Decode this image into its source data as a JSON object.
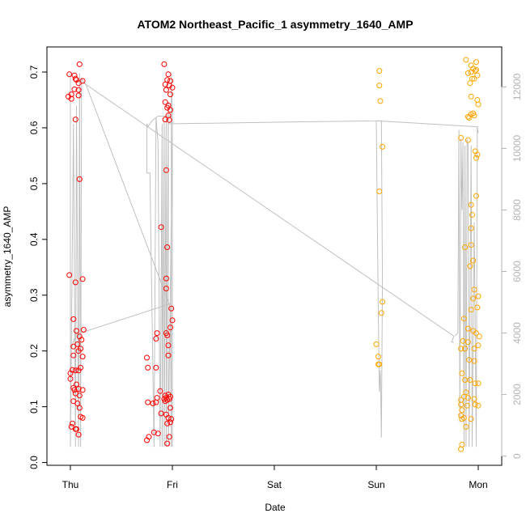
{
  "chart_data": {
    "type": "scatter",
    "title": "ATOM2 Northeast_Pacific_1 asymmetry_1640_AMP",
    "xlabel": "Date",
    "ylabel": "asymmetry_1640_AMP",
    "x_ticks": [
      "Thu",
      "Fri",
      "Sat",
      "Sun",
      "Mon"
    ],
    "x_tick_values": [
      0,
      1,
      2,
      3,
      4
    ],
    "xlim": [
      -0.23,
      4.23
    ],
    "ylim": [
      -0.005,
      0.745
    ],
    "y_ticks": [
      0.0,
      0.1,
      0.2,
      0.3,
      0.4,
      0.5,
      0.6,
      0.7
    ],
    "y2_ticks": [
      0,
      2000,
      4000,
      6000,
      8000,
      10000,
      12000
    ],
    "y2lim": [
      -300,
      13300
    ],
    "colors": {
      "red_series": "#ff0000",
      "orange_series": "#ffa500",
      "line": "#c0c0c0",
      "axis_right": "#b3b3b3"
    },
    "series": [
      {
        "color": "red",
        "points": [
          [
            -0.01,
            0.696
          ],
          [
            0.01,
            0.66
          ],
          [
            -0.02,
            0.656
          ],
          [
            0.01,
            0.652
          ],
          [
            0.04,
            0.694
          ],
          [
            0.05,
            0.688
          ],
          [
            0.06,
            0.686
          ],
          [
            0.08,
            0.68
          ],
          [
            0.09,
            0.714
          ],
          [
            0.12,
            0.684
          ],
          [
            0.04,
            0.669
          ],
          [
            0.08,
            0.668
          ],
          [
            0.08,
            0.658
          ],
          [
            0.05,
            0.615
          ],
          [
            0.09,
            0.508
          ],
          [
            -0.01,
            0.336
          ],
          [
            0.05,
            0.323
          ],
          [
            0.12,
            0.329
          ],
          [
            0.03,
            0.257
          ],
          [
            0.06,
            0.236
          ],
          [
            0.13,
            0.238
          ],
          [
            0.09,
            0.226
          ],
          [
            0.11,
            0.22
          ],
          [
            0.07,
            0.212
          ],
          [
            0.03,
            0.208
          ],
          [
            0.1,
            0.204
          ],
          [
            0.08,
            0.2
          ],
          [
            0.03,
            0.192
          ],
          [
            0.12,
            0.19
          ],
          [
            0.1,
            0.17
          ],
          [
            0.02,
            0.166
          ],
          [
            0.05,
            0.165
          ],
          [
            0.08,
            0.165
          ],
          [
            0.0,
            0.16
          ],
          [
            0.0,
            0.15
          ],
          [
            0.06,
            0.14
          ],
          [
            0.03,
            0.134
          ],
          [
            0.04,
            0.13
          ],
          [
            0.08,
            0.132
          ],
          [
            0.12,
            0.13
          ],
          [
            0.05,
            0.124
          ],
          [
            0.09,
            0.12
          ],
          [
            0.03,
            0.11
          ],
          [
            0.07,
            0.106
          ],
          [
            0.09,
            0.098
          ],
          [
            0.1,
            0.082
          ],
          [
            0.12,
            0.08
          ],
          [
            0.02,
            0.07
          ],
          [
            0.01,
            0.064
          ],
          [
            0.05,
            0.06
          ],
          [
            0.06,
            0.06
          ],
          [
            0.08,
            0.05
          ],
          [
            0.92,
            0.714
          ],
          [
            0.96,
            0.696
          ],
          [
            0.95,
            0.686
          ],
          [
            0.98,
            0.684
          ],
          [
            0.93,
            0.678
          ],
          [
            0.97,
            0.676
          ],
          [
            1.0,
            0.672
          ],
          [
            0.94,
            0.668
          ],
          [
            0.98,
            0.66
          ],
          [
            0.93,
            0.646
          ],
          [
            0.96,
            0.64
          ],
          [
            0.95,
            0.636
          ],
          [
            0.98,
            0.632
          ],
          [
            0.96,
            0.622
          ],
          [
            0.93,
            0.615
          ],
          [
            0.97,
            0.614
          ],
          [
            0.94,
            0.524
          ],
          [
            0.89,
            0.422
          ],
          [
            0.95,
            0.386
          ],
          [
            0.94,
            0.33
          ],
          [
            0.94,
            0.312
          ],
          [
            0.99,
            0.276
          ],
          [
            1.0,
            0.255
          ],
          [
            0.98,
            0.242
          ],
          [
            0.85,
            0.232
          ],
          [
            0.94,
            0.232
          ],
          [
            0.95,
            0.228
          ],
          [
            0.84,
            0.222
          ],
          [
            0.96,
            0.21
          ],
          [
            0.96,
            0.192
          ],
          [
            0.75,
            0.188
          ],
          [
            0.76,
            0.17
          ],
          [
            0.84,
            0.17
          ],
          [
            0.96,
            0.122
          ],
          [
            0.93,
            0.12
          ],
          [
            0.88,
            0.128
          ],
          [
            0.85,
            0.116
          ],
          [
            0.98,
            0.118
          ],
          [
            0.94,
            0.116
          ],
          [
            0.97,
            0.114
          ],
          [
            0.92,
            0.114
          ],
          [
            0.95,
            0.112
          ],
          [
            0.93,
            0.11
          ],
          [
            0.76,
            0.108
          ],
          [
            0.84,
            0.108
          ],
          [
            0.81,
            0.106
          ],
          [
            0.98,
            0.098
          ],
          [
            0.89,
            0.088
          ],
          [
            0.94,
            0.086
          ],
          [
            0.96,
            0.08
          ],
          [
            0.99,
            0.078
          ],
          [
            0.98,
            0.072
          ],
          [
            0.95,
            0.07
          ],
          [
            0.82,
            0.054
          ],
          [
            0.86,
            0.052
          ],
          [
            0.97,
            0.046
          ],
          [
            0.77,
            0.046
          ],
          [
            0.75,
            0.04
          ],
          [
            0.95,
            0.034
          ]
        ]
      },
      {
        "color": "orange",
        "points": [
          [
            3.03,
            0.702
          ],
          [
            3.03,
            0.676
          ],
          [
            3.04,
            0.648
          ],
          [
            3.06,
            0.566
          ],
          [
            3.03,
            0.486
          ],
          [
            3.06,
            0.288
          ],
          [
            3.05,
            0.268
          ],
          [
            3.0,
            0.212
          ],
          [
            3.02,
            0.19
          ],
          [
            3.02,
            0.176
          ],
          [
            3.03,
            0.176
          ],
          [
            3.88,
            0.722
          ],
          [
            3.93,
            0.712
          ],
          [
            3.95,
            0.706
          ],
          [
            3.98,
            0.718
          ],
          [
            3.98,
            0.704
          ],
          [
            3.9,
            0.698
          ],
          [
            3.93,
            0.7
          ],
          [
            3.97,
            0.702
          ],
          [
            3.94,
            0.688
          ],
          [
            3.92,
            0.68
          ],
          [
            3.96,
            0.688
          ],
          [
            3.99,
            0.694
          ],
          [
            3.93,
            0.656
          ],
          [
            3.99,
            0.65
          ],
          [
            4.0,
            0.642
          ],
          [
            3.95,
            0.626
          ],
          [
            3.9,
            0.62
          ],
          [
            3.93,
            0.624
          ],
          [
            3.96,
            0.622
          ],
          [
            3.91,
            0.618
          ],
          [
            3.83,
            0.582
          ],
          [
            3.9,
            0.578
          ],
          [
            3.97,
            0.558
          ],
          [
            3.99,
            0.552
          ],
          [
            3.98,
            0.546
          ],
          [
            3.98,
            0.478
          ],
          [
            3.93,
            0.462
          ],
          [
            3.94,
            0.444
          ],
          [
            3.93,
            0.42
          ],
          [
            3.87,
            0.386
          ],
          [
            3.93,
            0.39
          ],
          [
            3.92,
            0.352
          ],
          [
            3.95,
            0.362
          ],
          [
            3.96,
            0.31
          ],
          [
            4.0,
            0.298
          ],
          [
            3.95,
            0.294
          ],
          [
            3.99,
            0.278
          ],
          [
            3.93,
            0.274
          ],
          [
            3.86,
            0.258
          ],
          [
            3.9,
            0.24
          ],
          [
            3.95,
            0.236
          ],
          [
            3.98,
            0.232
          ],
          [
            4.01,
            0.226
          ],
          [
            3.85,
            0.218
          ],
          [
            3.9,
            0.216
          ],
          [
            3.83,
            0.204
          ],
          [
            3.87,
            0.204
          ],
          [
            3.96,
            0.204
          ],
          [
            4.0,
            0.21
          ],
          [
            3.91,
            0.184
          ],
          [
            3.96,
            0.182
          ],
          [
            3.84,
            0.16
          ],
          [
            3.87,
            0.148
          ],
          [
            3.92,
            0.148
          ],
          [
            3.97,
            0.142
          ],
          [
            4.0,
            0.142
          ],
          [
            3.88,
            0.126
          ],
          [
            3.86,
            0.118
          ],
          [
            3.83,
            0.112
          ],
          [
            3.9,
            0.116
          ],
          [
            3.96,
            0.114
          ],
          [
            3.83,
            0.104
          ],
          [
            3.89,
            0.102
          ],
          [
            3.97,
            0.104
          ],
          [
            4.0,
            0.102
          ],
          [
            3.84,
            0.094
          ],
          [
            3.83,
            0.084
          ],
          [
            3.86,
            0.08
          ],
          [
            3.84,
            0.078
          ],
          [
            3.93,
            0.078
          ],
          [
            3.88,
            0.064
          ],
          [
            3.84,
            0.032
          ],
          [
            3.83,
            0.024
          ]
        ]
      }
    ],
    "line_series": {
      "color": "gray",
      "axis": "right",
      "segments": [
        [
          [
            0.0,
            3500
          ],
          [
            0.0,
            12450
          ],
          [
            0.0,
            300
          ],
          [
            0.03,
            10800
          ],
          [
            0.05,
            300
          ],
          [
            0.06,
            11400
          ],
          [
            0.08,
            300
          ],
          [
            0.09,
            12450
          ],
          [
            0.1,
            300
          ],
          [
            0.11,
            12300
          ],
          [
            0.12,
            12200
          ],
          [
            0.15,
            12100
          ],
          [
            0.98,
            4850
          ],
          [
            0.99,
            300
          ],
          [
            0.99,
            12450
          ],
          [
            1.0,
            11000
          ],
          [
            1.0,
            300
          ],
          [
            1.0,
            10500
          ],
          [
            0.96,
            300
          ],
          [
            0.96,
            11500
          ],
          [
            0.94,
            300
          ],
          [
            0.94,
            11000
          ],
          [
            0.92,
            300
          ],
          [
            0.92,
            10900
          ],
          [
            0.9,
            300
          ],
          [
            0.9,
            10800
          ],
          [
            0.88,
            300
          ],
          [
            0.86,
            10200
          ],
          [
            0.84,
            11000
          ],
          [
            0.82,
            300
          ],
          [
            0.78,
            9200
          ],
          [
            0.75,
            9200
          ],
          [
            0.75,
            10800
          ],
          [
            0.76,
            10700
          ],
          [
            0.8,
            10900
          ],
          [
            0.82,
            10950
          ],
          [
            0.84,
            11000
          ],
          [
            0.86,
            11050
          ],
          [
            0.88,
            11050
          ],
          [
            0.9,
            11050
          ],
          [
            1.0,
            11050
          ]
        ],
        [
          [
            0.01,
            3500
          ],
          [
            0.05,
            3950
          ],
          [
            0.98,
            4950
          ]
        ],
        [
          [
            0.12,
            12150
          ],
          [
            3.76,
            3900
          ]
        ],
        [
          [
            3.76,
            3900
          ],
          [
            3.74,
            3700
          ],
          [
            3.75,
            3700
          ],
          [
            3.76,
            3700
          ]
        ],
        [
          [
            0.96,
            10800
          ],
          [
            3.0,
            10900
          ],
          [
            3.02,
            4600
          ],
          [
            3.03,
            2100
          ],
          [
            3.04,
            2800
          ],
          [
            3.05,
            600
          ],
          [
            3.06,
            5700
          ],
          [
            3.05,
            10900
          ],
          [
            3.0,
            10900
          ],
          [
            4.0,
            10700
          ]
        ],
        [
          [
            3.77,
            3900
          ],
          [
            3.8,
            4000
          ],
          [
            3.81,
            10600
          ],
          [
            3.82,
            1100
          ],
          [
            3.83,
            10300
          ],
          [
            3.84,
            8000
          ],
          [
            3.85,
            10200
          ],
          [
            3.86,
            300
          ],
          [
            3.87,
            10100
          ],
          [
            3.88,
            300
          ],
          [
            3.89,
            10300
          ],
          [
            3.9,
            10100
          ],
          [
            3.91,
            300
          ],
          [
            3.93,
            10100
          ],
          [
            3.94,
            300
          ],
          [
            3.96,
            7600
          ],
          [
            3.98,
            300
          ],
          [
            3.99,
            10700
          ],
          [
            4.0,
            10500
          ]
        ]
      ]
    }
  }
}
